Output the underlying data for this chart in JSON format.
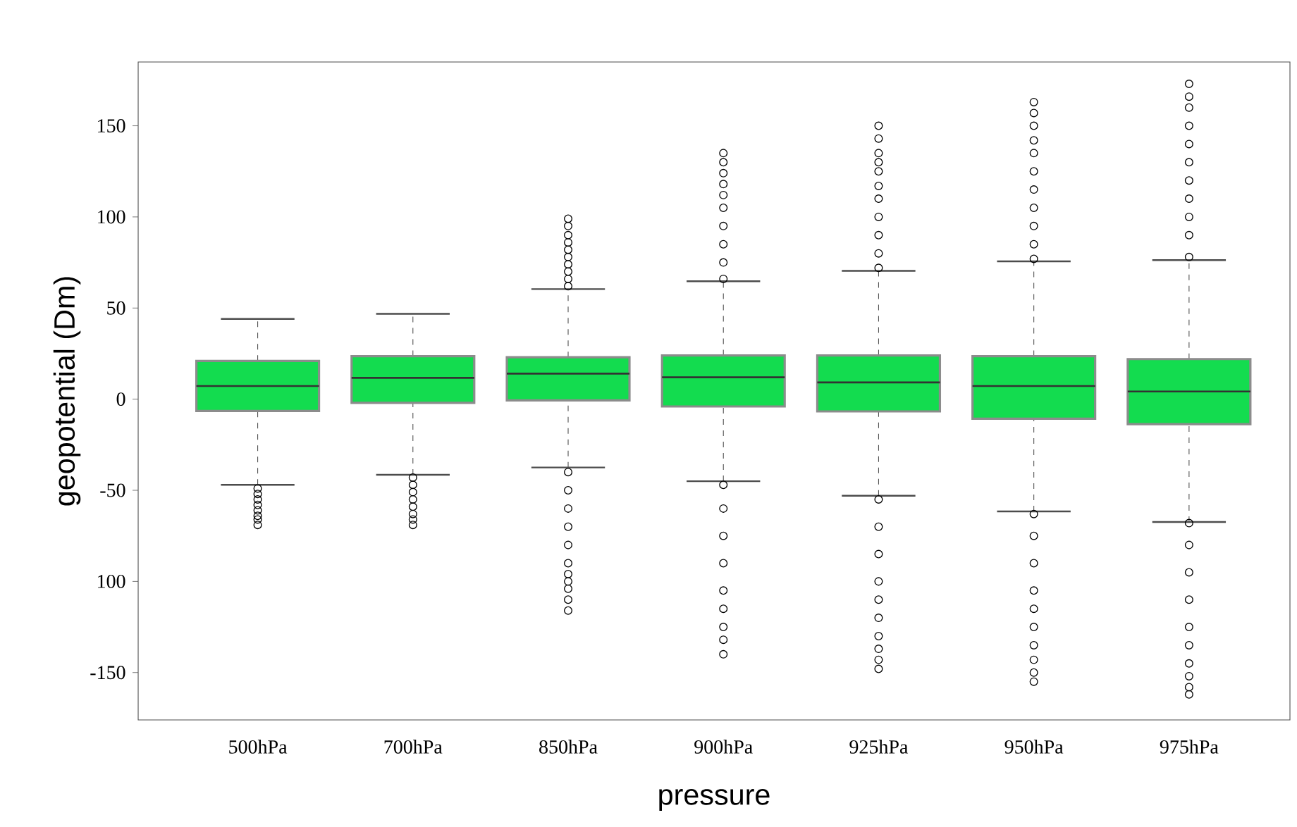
{
  "chart_data": {
    "type": "box",
    "xlabel": "pressure",
    "ylabel": "geopotential (Dm)",
    "color": "#13dc4f",
    "categories": [
      "500hPa",
      "700hPa",
      "850hPa",
      "900hPa",
      "925hPa",
      "950hPa",
      "975hPa"
    ],
    "boxes": [
      {
        "low": -47,
        "q1": -6.5,
        "median": 7.2,
        "q3": 21,
        "high": 44,
        "outliers": [
          -49,
          -52,
          -55,
          -58,
          -61,
          -64,
          -66,
          -69
        ]
      },
      {
        "low": -41.5,
        "q1": -2,
        "median": 11.7,
        "q3": 23.6,
        "high": 46.8,
        "outliers": [
          -43,
          -47,
          -51,
          -55,
          -59,
          -63,
          -66,
          -69
        ]
      },
      {
        "low": -37.5,
        "q1": -0.7,
        "median": 14,
        "q3": 23,
        "high": 60.4,
        "outliers": [
          62,
          66,
          70,
          74,
          78,
          82,
          86,
          90,
          95,
          99,
          -40,
          -50,
          -60,
          -70,
          -80,
          -90,
          -96,
          -100,
          -104,
          -110,
          -116
        ]
      },
      {
        "low": -45,
        "q1": -4,
        "median": 12,
        "q3": 24,
        "high": 64.7,
        "outliers": [
          66,
          75,
          85,
          95,
          105,
          112,
          118,
          124,
          130,
          135,
          -47,
          -60,
          -75,
          -90,
          -105,
          -115,
          -125,
          -132,
          -140
        ]
      },
      {
        "low": -53,
        "q1": -6.7,
        "median": 9.2,
        "q3": 24,
        "high": 70.4,
        "outliers": [
          72,
          80,
          90,
          100,
          110,
          117,
          125,
          130,
          135,
          143,
          150,
          -55,
          -70,
          -85,
          -100,
          -110,
          -120,
          -130,
          -137,
          -143,
          -148
        ]
      },
      {
        "low": -61.6,
        "q1": -10.7,
        "median": 7.2,
        "q3": 23.6,
        "high": 75.6,
        "outliers": [
          77,
          85,
          95,
          105,
          115,
          125,
          135,
          142,
          150,
          157,
          163,
          -63,
          -75,
          -90,
          -105,
          -115,
          -125,
          -135,
          -143,
          -150,
          -155
        ]
      },
      {
        "low": -67.4,
        "q1": -13.7,
        "median": 4.2,
        "q3": 22,
        "high": 76.3,
        "outliers": [
          78,
          90,
          100,
          110,
          120,
          130,
          140,
          150,
          160,
          166,
          173,
          -68,
          -80,
          -95,
          -110,
          -125,
          -135,
          -145,
          -152,
          -158,
          -162
        ]
      }
    ],
    "ylim": [
      -176,
      185
    ],
    "yticks": [
      -150,
      {
        "value": -100,
        "label": "100"
      },
      -50,
      0,
      50,
      100,
      150
    ],
    "grid": false
  }
}
